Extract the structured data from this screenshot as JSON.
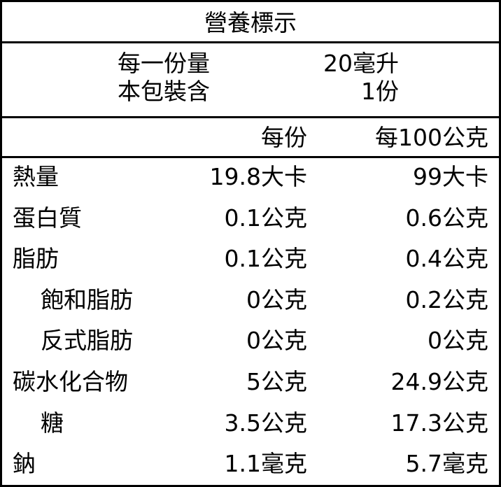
{
  "title": "營養標示",
  "serving": [
    [
      "每一份量",
      "20毫升"
    ],
    [
      "本包裝含",
      "1份"
    ]
  ],
  "columns": [
    "每份",
    "每100公克"
  ],
  "rows": [
    {
      "name": "熱量",
      "per_serving": "19.8大卡",
      "per_100g": "99大卡",
      "indent": false
    },
    {
      "name": "蛋白質",
      "per_serving": "0.1公克",
      "per_100g": "0.6公克",
      "indent": false
    },
    {
      "name": "脂肪",
      "per_serving": "0.1公克",
      "per_100g": "0.4公克",
      "indent": false
    },
    {
      "name": "飽和脂肪",
      "per_serving": "0公克",
      "per_100g": "0.2公克",
      "indent": true
    },
    {
      "name": "反式脂肪",
      "per_serving": "0公克",
      "per_100g": "0公克",
      "indent": true
    },
    {
      "name": "碳水化合物",
      "per_serving": "5公克",
      "per_100g": "24.9公克",
      "indent": false
    },
    {
      "name": "糖",
      "per_serving": "3.5公克",
      "per_100g": "17.3公克",
      "indent": true
    },
    {
      "name": "鈉",
      "per_serving": "1.1毫克",
      "per_100g": "5.7毫克",
      "indent": false
    }
  ]
}
